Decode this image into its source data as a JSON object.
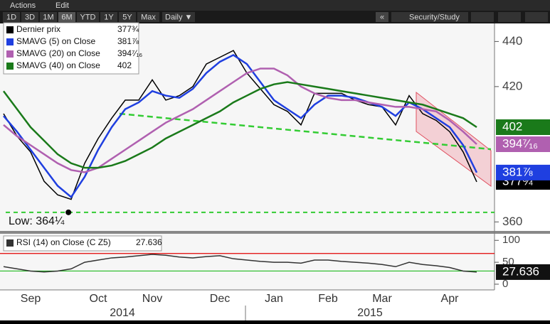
{
  "toolbar": {
    "menu": [
      "Actions",
      "Edit"
    ],
    "periods": [
      "1D",
      "3D",
      "1M",
      "6M",
      "YTD",
      "1Y",
      "5Y",
      "Max"
    ],
    "interval": "Daily ▼",
    "collapse": "«",
    "study": "Security/Study"
  },
  "years": [
    "2014",
    "2015"
  ],
  "chart_data": [
    {
      "type": "line",
      "categories": [
        null,
        null,
        "Sep",
        null,
        null,
        null,
        null,
        "Oct",
        null,
        null,
        null,
        "Nov",
        null,
        null,
        null,
        null,
        "Dec",
        null,
        null,
        null,
        "Jan",
        null,
        null,
        null,
        "Feb",
        null,
        null,
        null,
        "Mar",
        null,
        null,
        null,
        null,
        "Apr",
        null,
        null
      ],
      "ylim": [
        356,
        448
      ],
      "yticks": [
        360,
        420,
        440
      ],
      "series": [
        {
          "name": "Dernier prix",
          "color": "#000000",
          "last_value_label": "377¾",
          "values": [
            408,
            398,
            391,
            378,
            372,
            370,
            386,
            397,
            406,
            414,
            414,
            423,
            414,
            416,
            420,
            430,
            433,
            436,
            426,
            419,
            412,
            409,
            403,
            417,
            417,
            417,
            414,
            412,
            411,
            403,
            416,
            408,
            405,
            400,
            391,
            377.75
          ]
        },
        {
          "name": "SMAVG (5) on Close",
          "color": "#1f3fe0",
          "last_value_label": "381⅞",
          "values": [
            407,
            400,
            392,
            384,
            376,
            371,
            380,
            392,
            402,
            410,
            413,
            418,
            416,
            415,
            419,
            426,
            431,
            434,
            430,
            422,
            414,
            410,
            406,
            412,
            416,
            416,
            415,
            413,
            411,
            407,
            413,
            410,
            406,
            402,
            394,
            381.875
          ]
        },
        {
          "name": "SMAVG (20) on Close",
          "color": "#b060b0",
          "last_value_label": "394⁷⁄₁₆",
          "values": [
            403,
            398,
            394,
            390,
            386,
            383,
            382,
            384,
            388,
            392,
            396,
            400,
            404,
            407,
            410,
            414,
            418,
            422,
            426,
            428,
            428,
            425,
            420,
            417,
            415,
            414,
            414,
            413,
            412,
            411,
            411,
            410,
            409,
            405,
            400,
            394.4375
          ]
        },
        {
          "name": "SMAVG (40) on Close",
          "color": "#1a7a1a",
          "last_value_label": "402",
          "values": [
            418,
            410,
            402,
            396,
            390,
            386,
            384,
            384,
            385,
            387,
            390,
            393,
            397,
            400,
            403,
            406,
            409,
            413,
            416,
            419,
            421,
            422,
            421,
            420,
            419,
            418,
            417,
            416,
            415,
            414,
            413,
            412,
            410,
            408,
            406,
            402
          ]
        }
      ],
      "annotations": [
        {
          "text": "Low: 364¼",
          "value": 364.25
        }
      ]
    },
    {
      "type": "line",
      "ylim": [
        -13,
        115
      ],
      "yticks": [
        0,
        50,
        100
      ],
      "levels": [
        {
          "value": 70,
          "color": "#e00000"
        },
        {
          "value": 30,
          "color": "#22bb22"
        }
      ],
      "series": [
        {
          "name": "RSI (14) on Close (C Z5)",
          "color": "#333333",
          "last_value_label": "27.636",
          "values": [
            40,
            35,
            30,
            28,
            30,
            35,
            50,
            55,
            60,
            62,
            65,
            68,
            66,
            62,
            60,
            63,
            65,
            58,
            55,
            52,
            50,
            50,
            48,
            55,
            55,
            52,
            50,
            48,
            45,
            40,
            50,
            45,
            42,
            38,
            30,
            27.636
          ]
        }
      ]
    }
  ]
}
